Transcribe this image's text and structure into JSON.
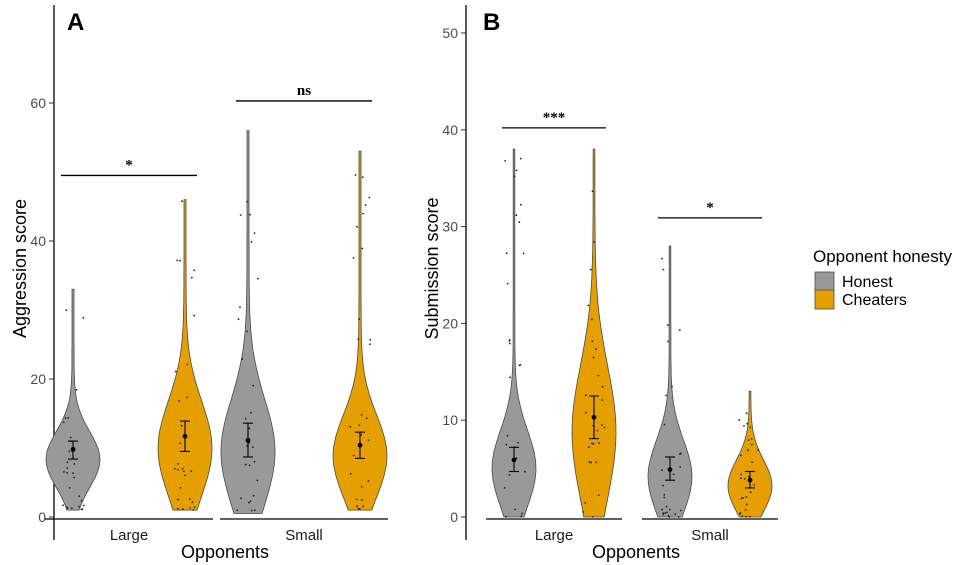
{
  "colors": {
    "honest": "#999999",
    "cheaters": "#E69F00"
  },
  "legend": {
    "title": "Opponent honesty",
    "items": [
      {
        "key": "honest",
        "label": "Honest"
      },
      {
        "key": "cheaters",
        "label": "Cheaters"
      }
    ]
  },
  "chart_data": [
    {
      "type": "violin",
      "panel_label": "A",
      "xlabel": "Opponents",
      "ylabel": "Aggression score",
      "ylim": [
        0,
        72
      ],
      "yticks": [
        0,
        20,
        40,
        60
      ],
      "categories": [
        "Large",
        "Small"
      ],
      "series": [
        {
          "name": "Honest",
          "key": "honest",
          "groups": [
            {
              "category": "Large",
              "min": 1,
              "max": 33,
              "mean": 9.8,
              "ci": [
                8.4,
                11.0
              ]
            },
            {
              "category": "Small",
              "min": 0.5,
              "max": 56,
              "mean": 11.1,
              "ci": [
                8.7,
                13.6
              ]
            }
          ]
        },
        {
          "name": "Cheaters",
          "key": "cheaters",
          "groups": [
            {
              "category": "Large",
              "min": 1,
              "max": 46,
              "mean": 11.7,
              "ci": [
                9.5,
                13.9
              ]
            },
            {
              "category": "Small",
              "min": 1,
              "max": 53,
              "mean": 10.4,
              "ci": [
                8.5,
                12.3
              ]
            }
          ]
        }
      ],
      "annotations": [
        {
          "category": "Large",
          "text": "*",
          "y": 49.5
        },
        {
          "category": "Small",
          "text": "ns",
          "y": 60.3
        }
      ]
    },
    {
      "type": "violin",
      "panel_label": "B",
      "xlabel": "Opponents",
      "ylabel": "Submission score",
      "ylim": [
        0,
        52
      ],
      "yticks": [
        0,
        10,
        20,
        30,
        40,
        50
      ],
      "categories": [
        "Large",
        "Small"
      ],
      "series": [
        {
          "name": "Honest",
          "key": "honest",
          "groups": [
            {
              "category": "Large",
              "min": 0,
              "max": 38,
              "mean": 5.9,
              "ci": [
                4.7,
                7.2
              ]
            },
            {
              "category": "Small",
              "min": 0,
              "max": 28,
              "mean": 4.9,
              "ci": [
                3.8,
                6.2
              ]
            }
          ]
        },
        {
          "name": "Cheaters",
          "key": "cheaters",
          "groups": [
            {
              "category": "Large",
              "min": 0,
              "max": 38,
              "mean": 10.3,
              "ci": [
                8.1,
                12.5
              ]
            },
            {
              "category": "Small",
              "min": 0,
              "max": 13,
              "mean": 3.8,
              "ci": [
                3.0,
                4.7
              ]
            }
          ]
        }
      ],
      "annotations": [
        {
          "category": "Large",
          "text": "***",
          "y": 40.2
        },
        {
          "category": "Small",
          "text": "*",
          "y": 30.9
        }
      ]
    }
  ]
}
